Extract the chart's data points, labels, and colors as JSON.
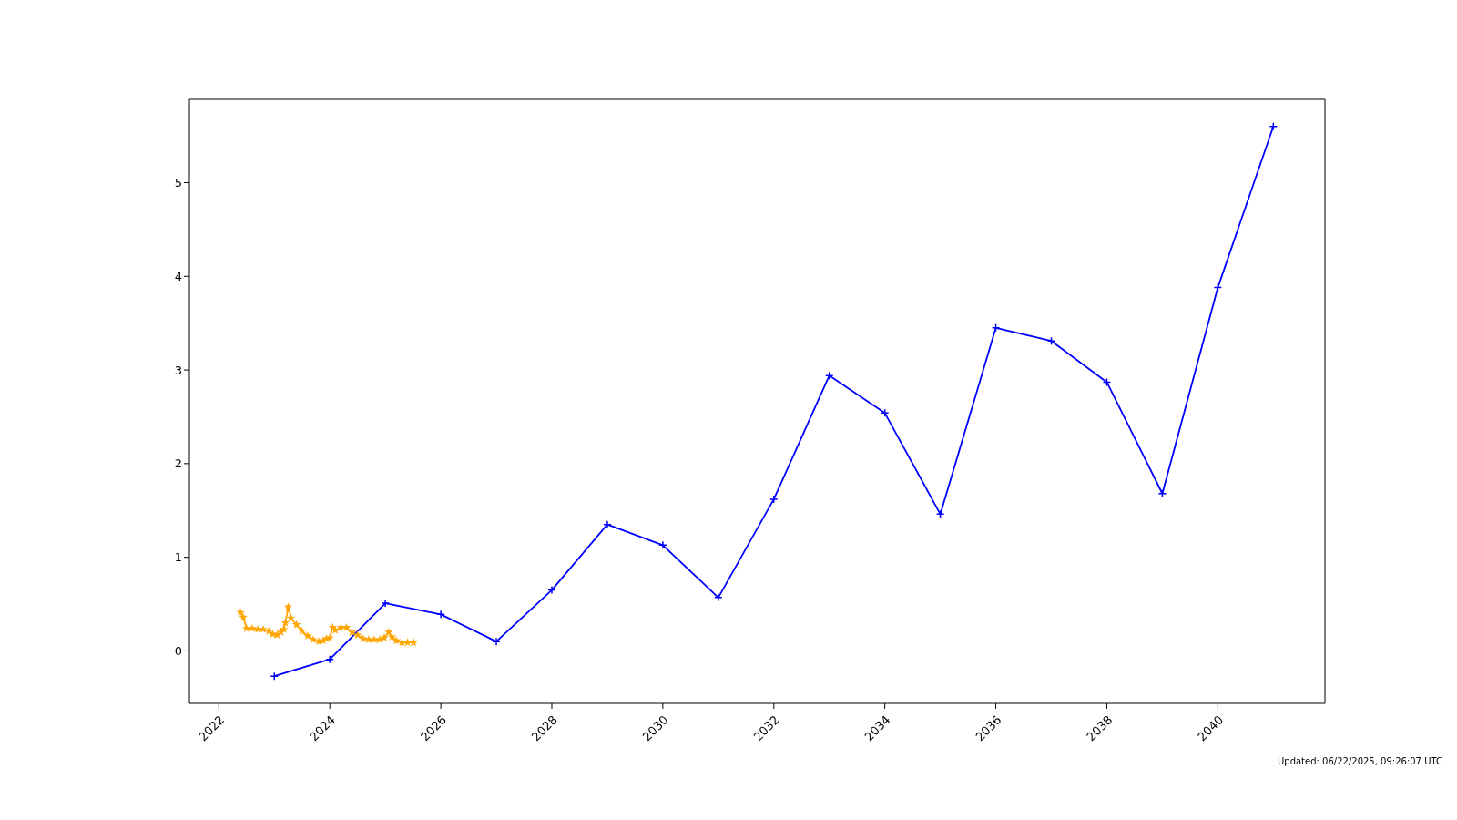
{
  "chart_data": {
    "type": "line",
    "xlim": [
      2021.47,
      2041.93
    ],
    "xticks": [
      2022,
      2024,
      2026,
      2028,
      2030,
      2032,
      2034,
      2036,
      2038,
      2040
    ],
    "ylim": [
      -0.56,
      5.89
    ],
    "yticks": [
      0,
      1,
      2,
      3,
      4,
      5
    ],
    "grid": false,
    "legend": false,
    "line_style": "solid",
    "annotations": [
      "Updated: 06/22/2025, 09:26:07 UTC"
    ],
    "series": [
      {
        "color": "#ffa500",
        "marker": "star",
        "x": [
          2022.39,
          2022.44,
          2022.5,
          2022.6,
          2022.7,
          2022.8,
          2022.9,
          2022.97,
          2023.05,
          2023.12,
          2023.17,
          2023.2,
          2023.25,
          2023.3,
          2023.4,
          2023.5,
          2023.6,
          2023.7,
          2023.8,
          2023.88,
          2023.94,
          2024.0,
          2024.05,
          2024.1,
          2024.2,
          2024.3,
          2024.4,
          2024.5,
          2024.6,
          2024.7,
          2024.8,
          2024.9,
          2024.98,
          2025.06,
          2025.12,
          2025.2,
          2025.3,
          2025.4,
          2025.51
        ],
        "values": [
          0.41,
          0.36,
          0.24,
          0.24,
          0.23,
          0.23,
          0.21,
          0.18,
          0.17,
          0.2,
          0.23,
          0.3,
          0.47,
          0.35,
          0.28,
          0.21,
          0.16,
          0.12,
          0.1,
          0.11,
          0.13,
          0.14,
          0.25,
          0.22,
          0.25,
          0.25,
          0.2,
          0.17,
          0.13,
          0.12,
          0.12,
          0.12,
          0.14,
          0.2,
          0.15,
          0.11,
          0.09,
          0.09,
          0.09
        ]
      },
      {
        "color": "#0000ff",
        "marker": "cross",
        "x": [
          2023,
          2024,
          2025,
          2026,
          2027,
          2028,
          2029,
          2030,
          2031,
          2032,
          2033,
          2034,
          2035,
          2036,
          2037,
          2038,
          2039,
          2040,
          2041
        ],
        "values": [
          -0.27,
          -0.09,
          0.51,
          0.39,
          0.1,
          0.65,
          1.35,
          1.13,
          0.57,
          1.62,
          2.94,
          2.54,
          1.46,
          3.45,
          3.31,
          2.87,
          1.68,
          3.88,
          5.6
        ]
      }
    ]
  }
}
